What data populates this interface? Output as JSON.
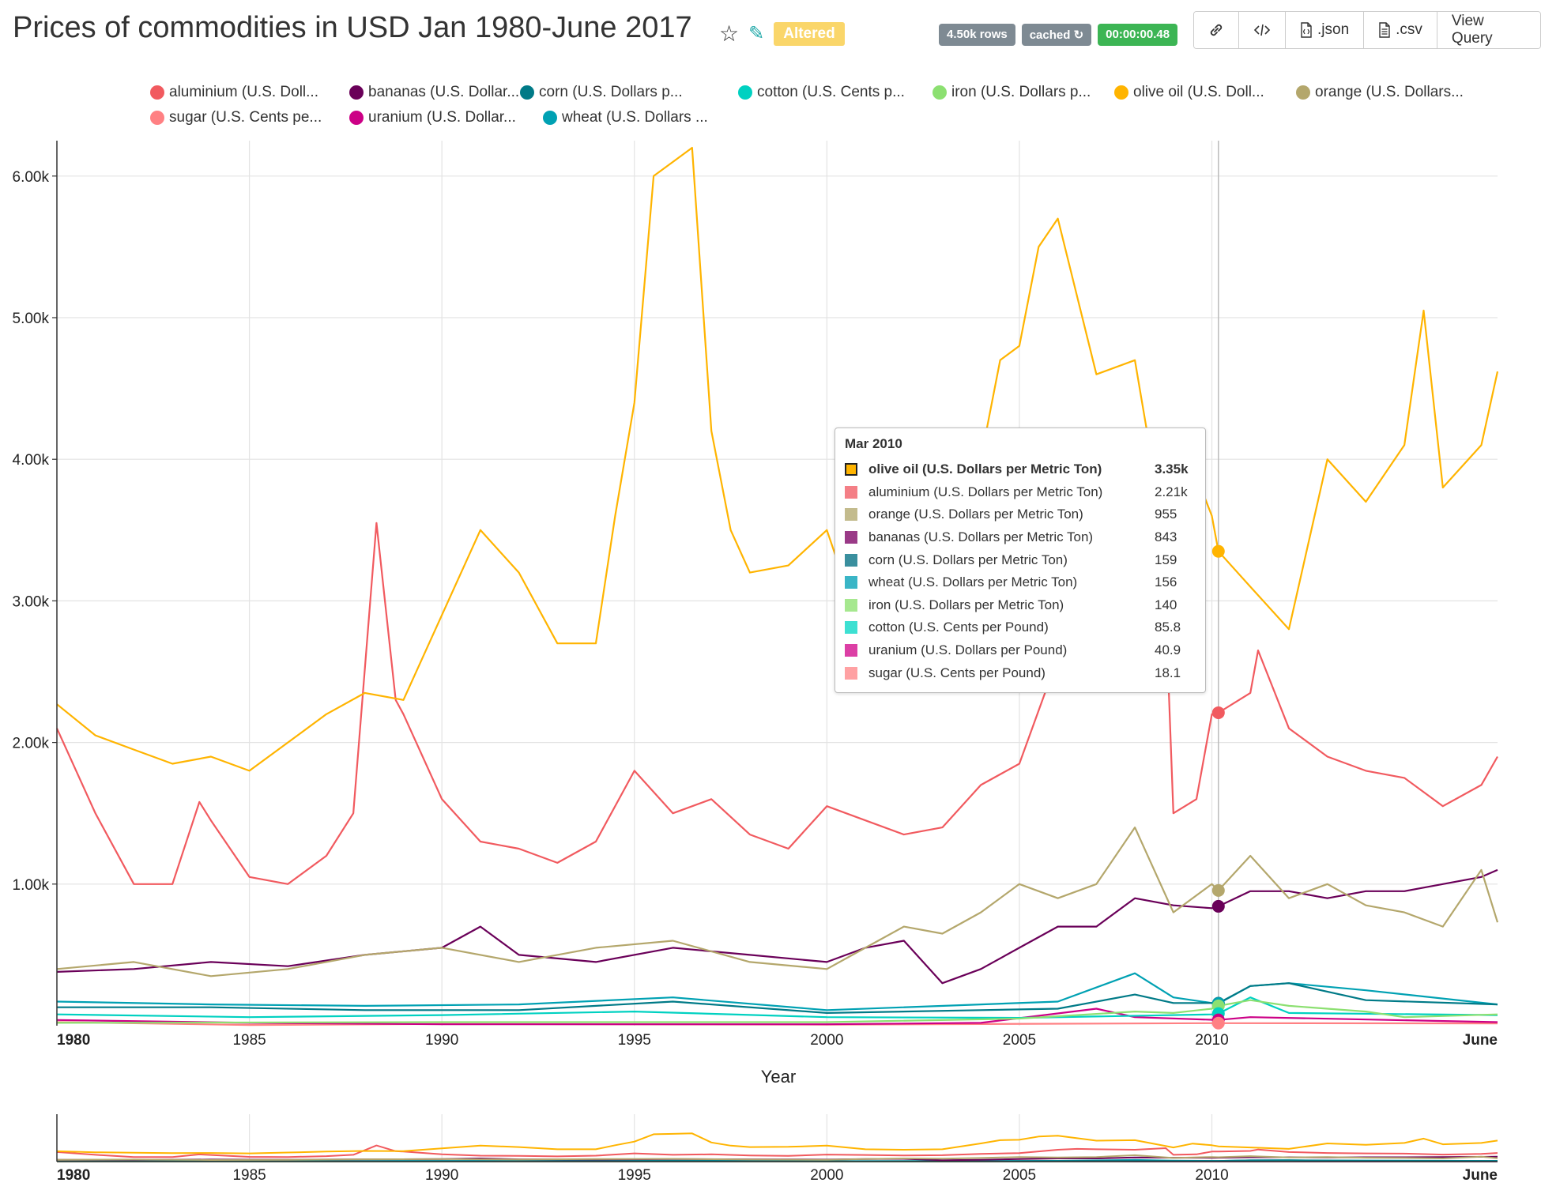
{
  "header": {
    "title": "Prices of commodities in USD Jan 1980-June 2017",
    "altered": "Altered",
    "rows_badge": "4.50k rows",
    "cached_badge": "cached ↻",
    "time_badge": "00:00:00.48",
    "toolbar": {
      "json": ".json",
      "csv": ".csv",
      "view_query": "View Query"
    }
  },
  "icons": [
    "star-icon",
    "edit-icon",
    "link-icon",
    "code-icon",
    "json-file-icon",
    "csv-file-icon"
  ],
  "legend": [
    {
      "label": "aluminium (U.S. Doll...",
      "color": "#f15a5f"
    },
    {
      "label": "bananas (U.S. Dollar...",
      "color": "#6a0059"
    },
    {
      "label": "corn (U.S. Dollars p...",
      "color": "#007a87"
    },
    {
      "label": "cotton (U.S. Cents p...",
      "color": "#00d1c1"
    },
    {
      "label": "iron (U.S. Dollars p...",
      "color": "#8ce071"
    },
    {
      "label": "olive oil (U.S. Doll...",
      "color": "#ffb400"
    },
    {
      "label": "orange (U.S. Dollars...",
      "color": "#b4a76c"
    },
    {
      "label": "sugar (U.S. Cents pe...",
      "color": "#ff8083"
    },
    {
      "label": "uranium (U.S. Dollar...",
      "color": "#cc0086"
    },
    {
      "label": "wheat (U.S. Dollars ...",
      "color": "#00a1b3"
    }
  ],
  "tooltip": {
    "title": "Mar 2010",
    "rows": [
      {
        "label": "olive oil (U.S. Dollars per Metric Ton)",
        "value": "3.35k",
        "color": "#ffb400",
        "bold": true
      },
      {
        "label": "aluminium (U.S. Dollars per Metric Ton)",
        "value": "2.21k",
        "color": "#f47f86"
      },
      {
        "label": "orange (U.S. Dollars per Metric Ton)",
        "value": "955",
        "color": "#c3bb8d"
      },
      {
        "label": "bananas (U.S. Dollars per Metric Ton)",
        "value": "843",
        "color": "#9a3a87"
      },
      {
        "label": "corn (U.S. Dollars per Metric Ton)",
        "value": "159",
        "color": "#3a8f9e"
      },
      {
        "label": "wheat (U.S. Dollars per Metric Ton)",
        "value": "156",
        "color": "#3ab5c6"
      },
      {
        "label": "iron (U.S. Dollars per Metric Ton)",
        "value": "140",
        "color": "#a6e88f"
      },
      {
        "label": "cotton (U.S. Cents per Pound)",
        "value": "85.8",
        "color": "#3de0d2"
      },
      {
        "label": "uranium (U.S. Dollars per Pound)",
        "value": "40.9",
        "color": "#dc3fa5"
      },
      {
        "label": "sugar (U.S. Cents per Pound)",
        "value": "18.1",
        "color": "#ffa1a3"
      }
    ]
  },
  "chart_data": {
    "type": "line",
    "title": "Prices of commodities in USD Jan 1980-June 2017",
    "xlabel": "Year",
    "ylabel": "",
    "xlim": [
      1980,
      2017.42
    ],
    "ylim": [
      0,
      6250
    ],
    "y_ticks": [
      1000,
      2000,
      3000,
      4000,
      5000,
      6000
    ],
    "y_tick_labels": [
      "1.00k",
      "2.00k",
      "3.00k",
      "4.00k",
      "5.00k",
      "6.00k"
    ],
    "x_ticks": [
      1980,
      1985,
      1990,
      1995,
      2000,
      2005,
      2010,
      2017.42
    ],
    "x_tick_labels": [
      "1980",
      "1985",
      "1990",
      "1995",
      "2000",
      "2005",
      "2010",
      "June"
    ],
    "grid": true,
    "hover_x": 2010.17,
    "series": [
      {
        "name": "olive oil (U.S. Dollars per Metric Ton)",
        "color": "#ffb400",
        "x": [
          1980,
          1981,
          1982,
          1983,
          1984,
          1985,
          1986,
          1987,
          1988,
          1989,
          1990,
          1991,
          1992,
          1993,
          1994,
          1994.5,
          1995,
          1995.5,
          1996,
          1996.5,
          1997,
          1997.5,
          1998,
          1999,
          2000,
          2001,
          2002,
          2003,
          2004,
          2004.5,
          2005,
          2005.5,
          2006,
          2007,
          2008,
          2009,
          2009.5,
          2010,
          2010.17,
          2011,
          2012,
          2013,
          2014,
          2015,
          2015.5,
          2016,
          2017,
          2017.42
        ],
        "y": [
          2270,
          2050,
          1950,
          1850,
          1900,
          1800,
          2000,
          2200,
          2350,
          2300,
          2900,
          3500,
          3200,
          2700,
          2700,
          3600,
          4400,
          6000,
          6100,
          6200,
          4200,
          3500,
          3200,
          3250,
          3500,
          2700,
          2600,
          2700,
          4000,
          4700,
          4800,
          5500,
          5700,
          4600,
          4700,
          3100,
          3950,
          3600,
          3350,
          3100,
          2800,
          4000,
          3700,
          4100,
          5050,
          3800,
          4100,
          4620
        ]
      },
      {
        "name": "aluminium (U.S. Dollars per Metric Ton)",
        "color": "#f15a5f",
        "x": [
          1980,
          1981,
          1982,
          1983,
          1983.7,
          1984,
          1985,
          1986,
          1987,
          1987.7,
          1988.3,
          1988.8,
          1989,
          1990,
          1991,
          1992,
          1993,
          1994,
          1995,
          1996,
          1997,
          1998,
          1999,
          2000,
          2001,
          2002,
          2003,
          2004,
          2005,
          2006,
          2006.5,
          2007,
          2008,
          2008.8,
          2009,
          2009.6,
          2010,
          2010.17,
          2011,
          2011.2,
          2012,
          2013,
          2014,
          2015,
          2016,
          2017,
          2017.42
        ],
        "y": [
          2100,
          1500,
          1000,
          1000,
          1580,
          1450,
          1050,
          1000,
          1200,
          1500,
          3550,
          2300,
          2200,
          1600,
          1300,
          1250,
          1150,
          1300,
          1800,
          1500,
          1600,
          1350,
          1250,
          1550,
          1450,
          1350,
          1400,
          1700,
          1850,
          2600,
          2800,
          2700,
          2600,
          2950,
          1500,
          1600,
          2200,
          2210,
          2350,
          2650,
          2100,
          1900,
          1800,
          1750,
          1550,
          1700,
          1900
        ]
      },
      {
        "name": "orange (U.S. Dollars per Metric Ton)",
        "color": "#b4a76c",
        "x": [
          1980,
          1982,
          1984,
          1986,
          1988,
          1990,
          1992,
          1994,
          1996,
          1998,
          2000,
          2001,
          2002,
          2003,
          2004,
          2005,
          2006,
          2007,
          2008,
          2009,
          2010,
          2010.17,
          2011,
          2012,
          2013,
          2014,
          2015,
          2016,
          2017,
          2017.42
        ],
        "y": [
          400,
          450,
          350,
          400,
          500,
          550,
          450,
          550,
          600,
          450,
          400,
          550,
          700,
          650,
          800,
          1000,
          900,
          1000,
          1400,
          800,
          1000,
          955,
          1200,
          900,
          1000,
          850,
          800,
          700,
          1100,
          730
        ]
      },
      {
        "name": "bananas (U.S. Dollars per Metric Ton)",
        "color": "#6a0059",
        "x": [
          1980,
          1982,
          1984,
          1986,
          1988,
          1990,
          1991,
          1992,
          1994,
          1996,
          1998,
          2000,
          2001,
          2002,
          2003,
          2004,
          2005,
          2006,
          2007,
          2008,
          2009,
          2010,
          2010.17,
          2011,
          2012,
          2013,
          2014,
          2015,
          2016,
          2017,
          2017.42
        ],
        "y": [
          380,
          400,
          450,
          420,
          500,
          550,
          700,
          500,
          450,
          550,
          500,
          450,
          550,
          600,
          300,
          400,
          550,
          700,
          700,
          900,
          850,
          830,
          843,
          950,
          950,
          900,
          950,
          950,
          1000,
          1050,
          1100
        ]
      },
      {
        "name": "corn (U.S. Dollars per Metric Ton)",
        "color": "#007a87",
        "x": [
          1980,
          1984,
          1988,
          1992,
          1996,
          2000,
          2004,
          2006,
          2008,
          2009,
          2010,
          2010.17,
          2011,
          2012,
          2014,
          2017.42
        ],
        "y": [
          130,
          130,
          110,
          110,
          170,
          90,
          110,
          120,
          220,
          160,
          160,
          159,
          280,
          300,
          180,
          150
        ]
      },
      {
        "name": "wheat (U.S. Dollars per Metric Ton)",
        "color": "#00a1b3",
        "x": [
          1980,
          1984,
          1988,
          1992,
          1996,
          2000,
          2004,
          2006,
          2008,
          2009,
          2010,
          2010.17,
          2011,
          2012,
          2014,
          2017.42
        ],
        "y": [
          170,
          150,
          140,
          150,
          200,
          110,
          150,
          170,
          370,
          200,
          160,
          156,
          280,
          300,
          250,
          150
        ]
      },
      {
        "name": "iron (U.S. Dollars per Metric Ton)",
        "color": "#8ce071",
        "x": [
          1980,
          1990,
          2000,
          2005,
          2008,
          2009,
          2010,
          2010.17,
          2011,
          2012,
          2014,
          2015,
          2017.42
        ],
        "y": [
          20,
          25,
          25,
          50,
          100,
          90,
          120,
          140,
          180,
          140,
          100,
          60,
          80
        ]
      },
      {
        "name": "cotton (U.S. Cents per Pound)",
        "color": "#00d1c1",
        "x": [
          1980,
          1985,
          1990,
          1995,
          2000,
          2005,
          2010,
          2010.17,
          2011,
          2012,
          2017.42
        ],
        "y": [
          80,
          60,
          75,
          100,
          60,
          55,
          80,
          85.8,
          200,
          90,
          75
        ]
      },
      {
        "name": "uranium (U.S. Dollars per Pound)",
        "color": "#cc0086",
        "x": [
          1980,
          1985,
          1990,
          2000,
          2004,
          2007,
          2008,
          2010,
          2010.17,
          2011,
          2017.42
        ],
        "y": [
          40,
          20,
          10,
          10,
          20,
          120,
          60,
          42,
          40.9,
          60,
          25
        ]
      },
      {
        "name": "sugar (U.S. Cents per Pound)",
        "color": "#ff8083",
        "x": [
          1980,
          1985,
          1990,
          2000,
          2010,
          2010.17,
          2017.42
        ],
        "y": [
          25,
          5,
          12,
          8,
          18,
          18.1,
          16
        ]
      }
    ]
  }
}
